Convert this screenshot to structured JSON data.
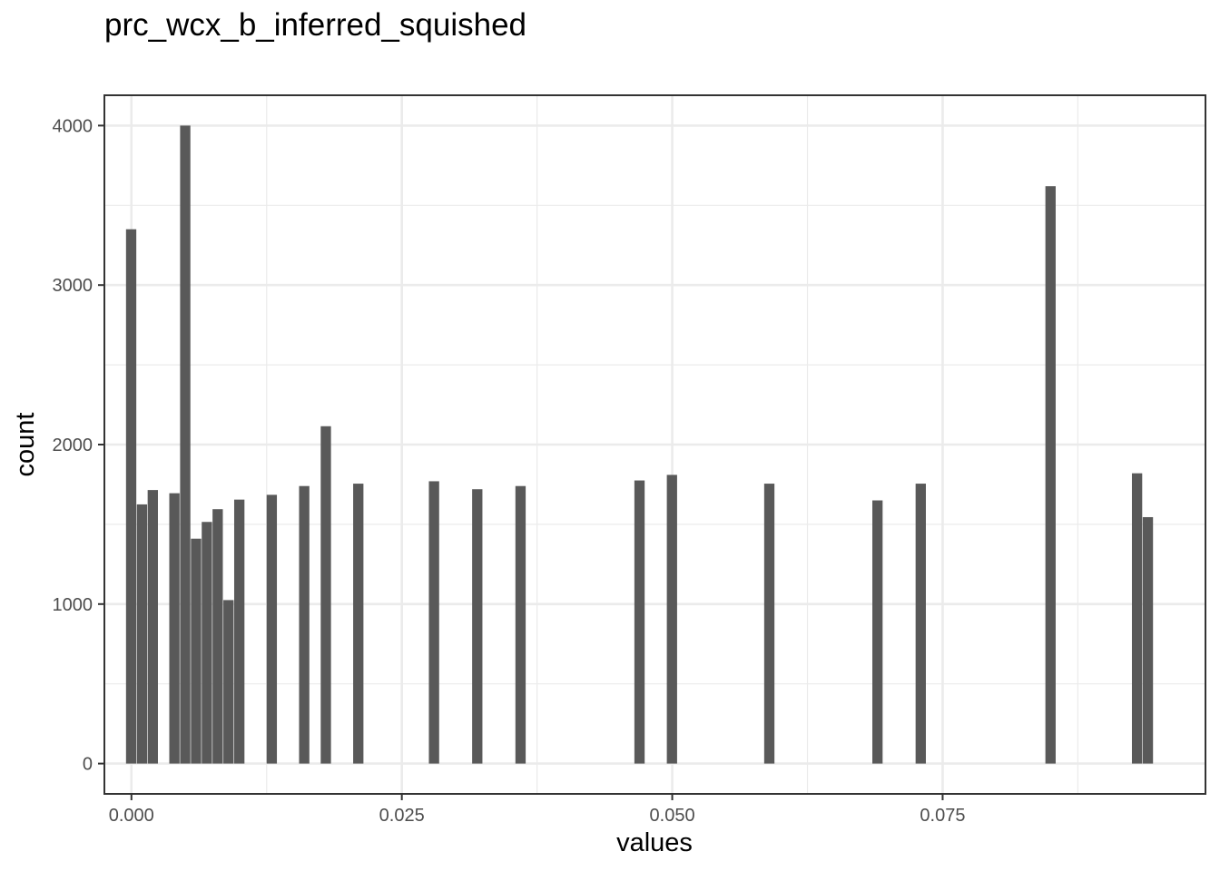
{
  "chart_data": {
    "type": "bar",
    "title": "prc_wcx_b_inferred_squished",
    "xlabel": "values",
    "ylabel": "count",
    "xlim": [
      -0.0025,
      0.0993
    ],
    "ylim": [
      -190,
      4190
    ],
    "x_ticks": [
      0.0,
      0.025,
      0.05,
      0.075
    ],
    "x_tick_labels": [
      "0.000",
      "0.025",
      "0.050",
      "0.075"
    ],
    "y_ticks": [
      0,
      1000,
      2000,
      3000,
      4000
    ],
    "y_tick_labels": [
      "0",
      "1000",
      "2000",
      "3000",
      "4000"
    ],
    "grid": true,
    "bar_color": "#595959",
    "bin_width": 0.001,
    "bins": [
      {
        "x": 0.0,
        "count": 3350
      },
      {
        "x": 0.001,
        "count": 1625
      },
      {
        "x": 0.002,
        "count": 1715
      },
      {
        "x": 0.004,
        "count": 1695
      },
      {
        "x": 0.005,
        "count": 4000
      },
      {
        "x": 0.006,
        "count": 1410
      },
      {
        "x": 0.007,
        "count": 1515
      },
      {
        "x": 0.008,
        "count": 1595
      },
      {
        "x": 0.009,
        "count": 1025
      },
      {
        "x": 0.01,
        "count": 1655
      },
      {
        "x": 0.013,
        "count": 1685
      },
      {
        "x": 0.016,
        "count": 1740
      },
      {
        "x": 0.018,
        "count": 2115
      },
      {
        "x": 0.021,
        "count": 1755
      },
      {
        "x": 0.028,
        "count": 1770
      },
      {
        "x": 0.032,
        "count": 1720
      },
      {
        "x": 0.036,
        "count": 1740
      },
      {
        "x": 0.047,
        "count": 1775
      },
      {
        "x": 0.05,
        "count": 1810
      },
      {
        "x": 0.059,
        "count": 1755
      },
      {
        "x": 0.069,
        "count": 1650
      },
      {
        "x": 0.073,
        "count": 1755
      },
      {
        "x": 0.085,
        "count": 3620
      },
      {
        "x": 0.093,
        "count": 1820
      },
      {
        "x": 0.094,
        "count": 1545
      }
    ]
  }
}
